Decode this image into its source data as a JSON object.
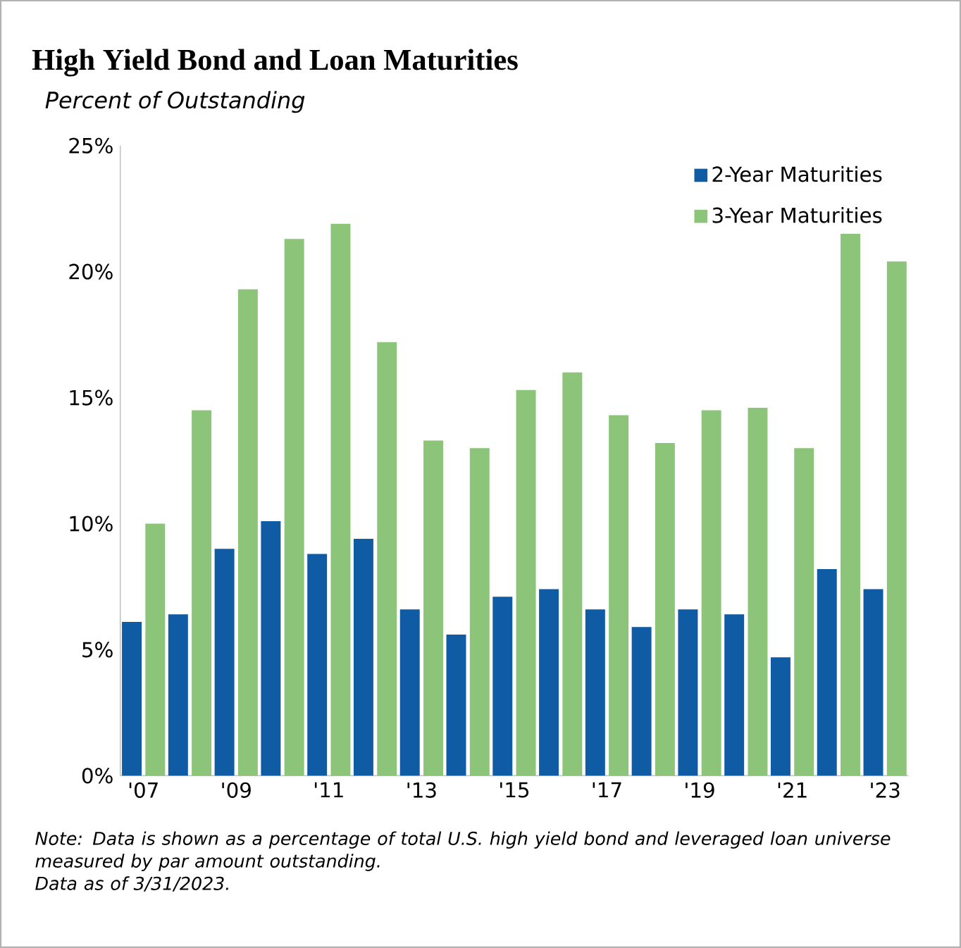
{
  "chart_data": {
    "type": "bar",
    "title": "High Yield Bond and Loan Maturities",
    "subtitle": "Percent of Outstanding",
    "categories": [
      "'07",
      null,
      "'09",
      null,
      "'11",
      null,
      "'13",
      null,
      "'15",
      null,
      "'17",
      null,
      "'19",
      null,
      "'21",
      null,
      "'23"
    ],
    "series": [
      {
        "name": "2-Year Maturities",
        "color": "#0f5ba4",
        "values": [
          6.1,
          6.4,
          9.0,
          10.1,
          8.8,
          9.4,
          6.6,
          5.6,
          7.1,
          7.4,
          6.6,
          5.9,
          6.6,
          6.4,
          4.7,
          8.2,
          7.4
        ]
      },
      {
        "name": "3-Year Maturities",
        "color": "#8cc47a",
        "values": [
          10.0,
          14.5,
          19.3,
          21.3,
          21.9,
          17.2,
          13.3,
          13.0,
          15.3,
          16.0,
          14.3,
          13.2,
          14.5,
          14.6,
          13.0,
          21.5,
          20.4
        ]
      }
    ],
    "ylim": [
      0,
      25
    ],
    "yticks": [
      {
        "value": 0,
        "label": "0%"
      },
      {
        "value": 5,
        "label": "5%"
      },
      {
        "value": 10,
        "label": "10%"
      },
      {
        "value": 15,
        "label": "15%"
      },
      {
        "value": 20,
        "label": "20%"
      },
      {
        "value": 25,
        "label": "25%"
      }
    ],
    "legend": "top right",
    "grid": false,
    "annotations": [
      "Note: Data is shown as a percentage of total U.S. high yield bond and leveraged loan universe measured by par amount outstanding.",
      "Data as of 3/31/2023."
    ]
  }
}
